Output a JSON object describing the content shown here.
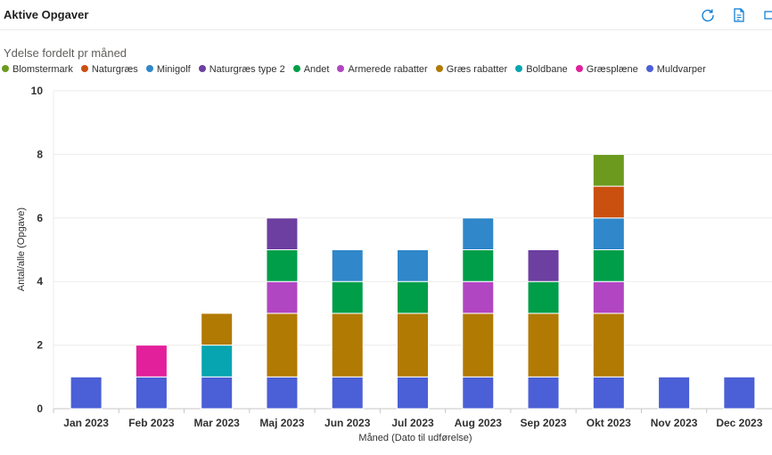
{
  "header": {
    "title": "Aktive Opgaver",
    "tools": [
      {
        "icon": "refresh-icon"
      },
      {
        "icon": "export-document-icon"
      },
      {
        "icon": "expand-icon"
      }
    ]
  },
  "chart_data": {
    "type": "bar",
    "stacked": true,
    "title": "Ydelse fordelt pr måned",
    "xlabel": "Måned (Dato til udførelse)",
    "ylabel": "Antal/alle (Opgave)",
    "ylim": [
      0,
      10
    ],
    "yticks": [
      0,
      2,
      4,
      6,
      8,
      10
    ],
    "grid": true,
    "legend_position": "top-left",
    "categories": [
      "Jan 2023",
      "Feb 2023",
      "Mar 2023",
      "Maj 2023",
      "Jun 2023",
      "Jul 2023",
      "Aug 2023",
      "Sep 2023",
      "Okt 2023",
      "Nov 2023",
      "Dec 2023"
    ],
    "legend_order": [
      "Blomstermark",
      "Naturgræs",
      "Minigolf",
      "Naturgræs type 2",
      "Andet",
      "Armerede rabatter",
      "Græs rabatter",
      "Boldbane",
      "Græsplæne",
      "Muldvarper"
    ],
    "series": [
      {
        "name": "Muldvarper",
        "color": "#4b5fd6",
        "values": [
          1,
          1,
          1,
          1,
          1,
          1,
          1,
          1,
          1,
          1,
          1
        ]
      },
      {
        "name": "Græsplæne",
        "color": "#e3209b",
        "values": [
          0,
          1,
          0,
          0,
          0,
          0,
          0,
          0,
          0,
          0,
          0
        ]
      },
      {
        "name": "Boldbane",
        "color": "#07a5b1",
        "values": [
          0,
          0,
          1,
          0,
          0,
          0,
          0,
          0,
          0,
          0,
          0
        ]
      },
      {
        "name": "Græs rabatter",
        "color": "#b17a02",
        "values": [
          0,
          0,
          1,
          2,
          2,
          2,
          2,
          2,
          2,
          0,
          0
        ]
      },
      {
        "name": "Armerede rabatter",
        "color": "#b146c2",
        "values": [
          0,
          0,
          0,
          1,
          0,
          0,
          1,
          0,
          1,
          0,
          0
        ]
      },
      {
        "name": "Andet",
        "color": "#009e49",
        "values": [
          0,
          0,
          0,
          1,
          1,
          1,
          1,
          1,
          1,
          0,
          0
        ]
      },
      {
        "name": "Naturgræs type 2",
        "color": "#6d3fa0",
        "values": [
          0,
          0,
          0,
          1,
          0,
          0,
          0,
          1,
          0,
          0,
          0
        ]
      },
      {
        "name": "Minigolf",
        "color": "#3087c9",
        "values": [
          0,
          0,
          0,
          0,
          1,
          1,
          1,
          0,
          1,
          0,
          0
        ]
      },
      {
        "name": "Naturgræs",
        "color": "#ca5010",
        "values": [
          0,
          0,
          0,
          0,
          0,
          0,
          0,
          0,
          1,
          0,
          0
        ]
      },
      {
        "name": "Blomstermark",
        "color": "#6b9a1f",
        "values": [
          0,
          0,
          0,
          0,
          0,
          0,
          0,
          0,
          1,
          0,
          0
        ]
      }
    ]
  }
}
